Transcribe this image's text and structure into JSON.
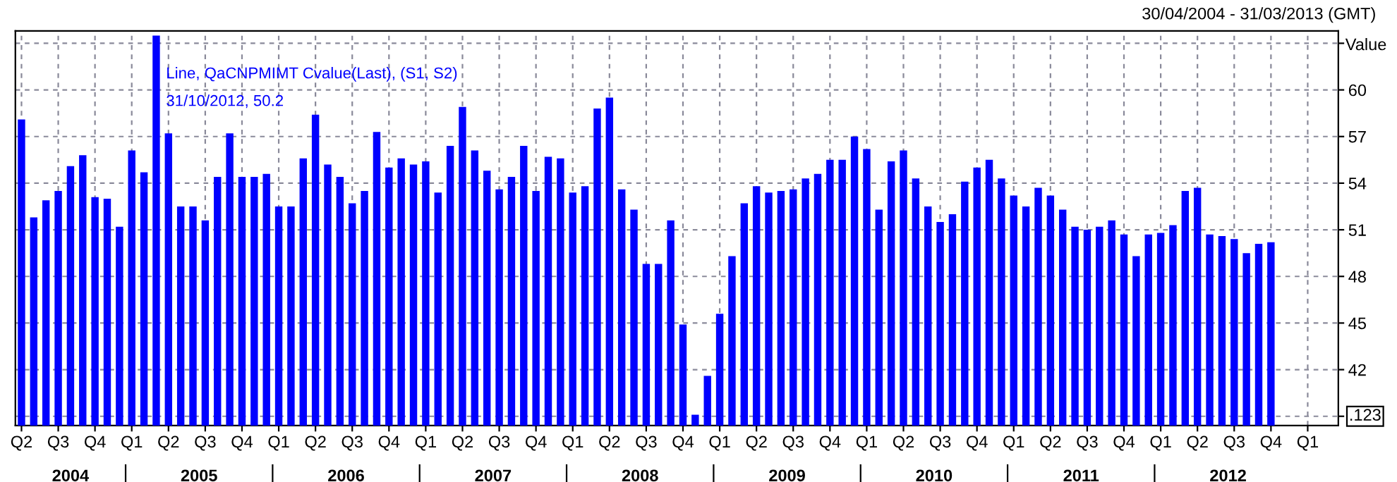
{
  "chart_data": {
    "type": "bar",
    "subtitle": "30/04/2004 - 31/03/2013 (GMT)",
    "ylabel": "Value",
    "annotations": [
      "Line, QaCNPMIMT Cvalue(Last), (S1, S2)",
      "31/10/2012, 50.2",
      ".123",
      "2004",
      "2005",
      "2006",
      "2007",
      "2008",
      "2009",
      "2010",
      "2011",
      "2012"
    ],
    "x": [
      "2004-04",
      "2004-05",
      "2004-06",
      "2004-07",
      "2004-08",
      "2004-09",
      "2004-10",
      "2004-11",
      "2004-12",
      "2005-01",
      "2005-02",
      "2005-03",
      "2005-04",
      "2005-05",
      "2005-06",
      "2005-07",
      "2005-08",
      "2005-09",
      "2005-10",
      "2005-11",
      "2005-12",
      "2006-01",
      "2006-02",
      "2006-03",
      "2006-04",
      "2006-05",
      "2006-06",
      "2006-07",
      "2006-08",
      "2006-09",
      "2006-10",
      "2006-11",
      "2006-12",
      "2007-01",
      "2007-02",
      "2007-03",
      "2007-04",
      "2007-05",
      "2007-06",
      "2007-07",
      "2007-08",
      "2007-09",
      "2007-10",
      "2007-11",
      "2007-12",
      "2008-01",
      "2008-02",
      "2008-03",
      "2008-04",
      "2008-05",
      "2008-06",
      "2008-07",
      "2008-08",
      "2008-09",
      "2008-10",
      "2008-11",
      "2008-12",
      "2009-01",
      "2009-02",
      "2009-03",
      "2009-04",
      "2009-05",
      "2009-06",
      "2009-07",
      "2009-08",
      "2009-09",
      "2009-10",
      "2009-11",
      "2009-12",
      "2010-01",
      "2010-02",
      "2010-03",
      "2010-04",
      "2010-05",
      "2010-06",
      "2010-07",
      "2010-08",
      "2010-09",
      "2010-10",
      "2010-11",
      "2010-12",
      "2011-01",
      "2011-02",
      "2011-03",
      "2011-04",
      "2011-05",
      "2011-06",
      "2011-07",
      "2011-08",
      "2011-09",
      "2011-10",
      "2011-11",
      "2011-12",
      "2012-01",
      "2012-02",
      "2012-03",
      "2012-04",
      "2012-05",
      "2012-06",
      "2012-07",
      "2012-08",
      "2012-09",
      "2012-10"
    ],
    "values": [
      58.1,
      51.8,
      52.9,
      53.5,
      55.1,
      55.8,
      53.1,
      53.0,
      51.2,
      56.1,
      54.7,
      63.5,
      57.2,
      52.5,
      52.5,
      51.6,
      54.4,
      57.2,
      54.4,
      54.4,
      54.6,
      52.5,
      52.5,
      55.6,
      58.4,
      55.2,
      54.4,
      52.7,
      53.5,
      57.3,
      55.0,
      55.6,
      55.2,
      55.4,
      53.4,
      56.4,
      58.9,
      56.1,
      54.8,
      53.6,
      54.4,
      56.4,
      53.5,
      55.7,
      55.6,
      53.4,
      53.8,
      58.8,
      59.5,
      53.6,
      52.3,
      48.8,
      48.8,
      51.6,
      44.9,
      39.1,
      41.6,
      45.6,
      49.3,
      52.7,
      53.8,
      53.4,
      53.5,
      53.6,
      54.3,
      54.6,
      55.5,
      55.5,
      57.0,
      56.2,
      52.3,
      55.4,
      56.1,
      54.3,
      52.5,
      51.5,
      52.0,
      54.1,
      55.0,
      55.5,
      54.3,
      53.2,
      52.5,
      53.7,
      53.2,
      52.3,
      51.2,
      51.0,
      51.2,
      51.6,
      50.7,
      49.3,
      50.7,
      50.8,
      51.3,
      53.5,
      53.7,
      50.7,
      50.6,
      50.4,
      49.5,
      50.1,
      50.2
    ],
    "color": "#0000ff",
    "xlim": [
      "2004-04",
      "2013-03"
    ],
    "xticks": [
      {
        "value": "2004-04",
        "label": "Q2"
      },
      {
        "value": "2004-07",
        "label": "Q3"
      },
      {
        "value": "2004-10",
        "label": "Q4"
      },
      {
        "value": "2005-01",
        "label": "Q1"
      },
      {
        "value": "2005-04",
        "label": "Q2"
      },
      {
        "value": "2005-07",
        "label": "Q3"
      },
      {
        "value": "2005-10",
        "label": "Q4"
      },
      {
        "value": "2006-01",
        "label": "Q1"
      },
      {
        "value": "2006-04",
        "label": "Q2"
      },
      {
        "value": "2006-07",
        "label": "Q3"
      },
      {
        "value": "2006-10",
        "label": "Q4"
      },
      {
        "value": "2007-01",
        "label": "Q1"
      },
      {
        "value": "2007-04",
        "label": "Q2"
      },
      {
        "value": "2007-07",
        "label": "Q3"
      },
      {
        "value": "2007-10",
        "label": "Q4"
      },
      {
        "value": "2008-01",
        "label": "Q1"
      },
      {
        "value": "2008-04",
        "label": "Q2"
      },
      {
        "value": "2008-07",
        "label": "Q3"
      },
      {
        "value": "2008-10",
        "label": "Q4"
      },
      {
        "value": "2009-01",
        "label": "Q1"
      },
      {
        "value": "2009-04",
        "label": "Q2"
      },
      {
        "value": "2009-07",
        "label": "Q3"
      },
      {
        "value": "2009-10",
        "label": "Q4"
      },
      {
        "value": "2010-01",
        "label": "Q1"
      },
      {
        "value": "2010-04",
        "label": "Q2"
      },
      {
        "value": "2010-07",
        "label": "Q3"
      },
      {
        "value": "2010-10",
        "label": "Q4"
      },
      {
        "value": "2011-01",
        "label": "Q1"
      },
      {
        "value": "2011-04",
        "label": "Q2"
      },
      {
        "value": "2011-07",
        "label": "Q3"
      },
      {
        "value": "2011-10",
        "label": "Q4"
      },
      {
        "value": "2012-01",
        "label": "Q1"
      },
      {
        "value": "2012-04",
        "label": "Q2"
      },
      {
        "value": "2012-07",
        "label": "Q3"
      },
      {
        "value": "2012-10",
        "label": "Q4"
      },
      {
        "value": "2013-01",
        "label": "Q1"
      }
    ],
    "ylim": [
      38.4,
      63.8
    ],
    "yticks": [
      {
        "value": 39,
        "label": null
      },
      42,
      45,
      48,
      51,
      54,
      57,
      60,
      {
        "value": 63,
        "label": null
      }
    ],
    "grid": true,
    "legend": false
  }
}
